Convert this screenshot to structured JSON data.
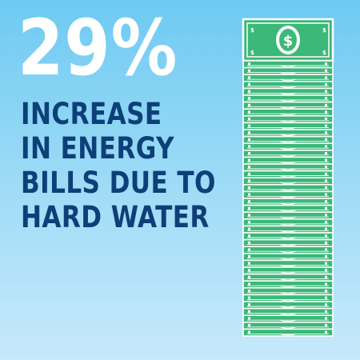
{
  "headline": {
    "stat": "29%",
    "lines": [
      "INCREASE",
      "IN ENERGY",
      "BILLS DUE TO",
      "HARD WATER"
    ]
  },
  "money_stack": {
    "icon": "money-stack-icon",
    "top_bill_symbol": "$",
    "bill_corner_symbol": "$"
  },
  "colors": {
    "background_top": "#6ecaf2",
    "background_bottom": "#c6e9fb",
    "stat_text": "#ffffff",
    "caption_text": "#0d3f78",
    "bill_green": "#3cb878",
    "bill_dark_green": "#2a9a5e",
    "bill_white": "#ffffff"
  }
}
